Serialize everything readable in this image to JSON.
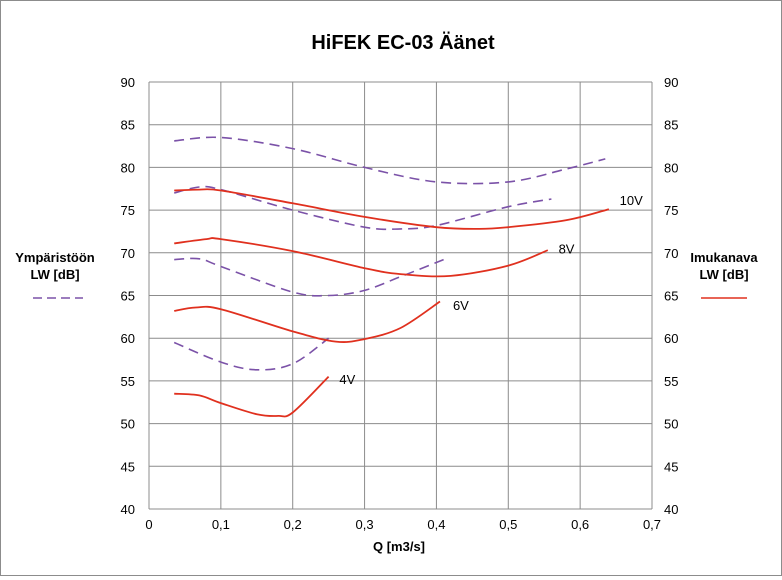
{
  "chart_data": {
    "type": "line",
    "title": "HiFEK EC-03 Äänet",
    "xlabel": "Q [m3/s]",
    "ylabel_left": "Ympäristöön LW [dB]",
    "ylabel_right": "Imukanava LW [dB]",
    "xlim": [
      0,
      0.7
    ],
    "ylim": [
      40,
      90
    ],
    "x_ticks": [
      "0",
      "0,1",
      "0,2",
      "0,3",
      "0,4",
      "0,5",
      "0,6",
      "0,7"
    ],
    "y_ticks_left": [
      "40",
      "45",
      "50",
      "55",
      "60",
      "65",
      "70",
      "75",
      "80",
      "85",
      "90"
    ],
    "y_ticks_right": [
      "40",
      "45",
      "50",
      "55",
      "60",
      "65",
      "70",
      "75",
      "80",
      "85",
      "90"
    ],
    "grid": true,
    "colors": {
      "ymparisto": "#7b52a8",
      "imukanava": "#e0301e",
      "grid": "#8c8c8c"
    },
    "legend": {
      "left": {
        "line1": "Ympäristöön",
        "line2": "LW [dB]",
        "style": "dashed"
      },
      "right": {
        "line1": "Imukanava",
        "line2": "LW [dB]",
        "style": "solid"
      }
    },
    "series": [
      {
        "group": "ymparisto",
        "label": "10V",
        "x": [
          0.035,
          0.1,
          0.2,
          0.3,
          0.4,
          0.5,
          0.58,
          0.635
        ],
        "y": [
          83.1,
          83.5,
          82.2,
          80.0,
          78.3,
          78.3,
          79.8,
          81.0
        ]
      },
      {
        "group": "ymparisto",
        "label": "8V",
        "x": [
          0.035,
          0.07,
          0.1,
          0.2,
          0.3,
          0.35,
          0.4,
          0.5,
          0.56
        ],
        "y": [
          77.0,
          77.7,
          77.4,
          75.0,
          73.0,
          72.8,
          73.2,
          75.4,
          76.3
        ]
      },
      {
        "group": "ymparisto",
        "label": "6V",
        "x": [
          0.035,
          0.07,
          0.1,
          0.2,
          0.25,
          0.3,
          0.35,
          0.41
        ],
        "y": [
          69.2,
          69.3,
          68.4,
          65.4,
          65.0,
          65.6,
          67.2,
          69.2
        ]
      },
      {
        "group": "ymparisto",
        "label": "4V",
        "x": [
          0.035,
          0.1,
          0.15,
          0.2,
          0.25
        ],
        "y": [
          59.5,
          57.2,
          56.3,
          57.0,
          60.0
        ]
      },
      {
        "group": "imukanava",
        "label": "10V",
        "x": [
          0.035,
          0.07,
          0.1,
          0.2,
          0.3,
          0.4,
          0.46,
          0.5,
          0.58,
          0.64
        ],
        "y": [
          77.3,
          77.4,
          77.3,
          75.8,
          74.2,
          73.0,
          72.8,
          73.0,
          73.8,
          75.1
        ]
      },
      {
        "group": "imukanava",
        "label": "8V",
        "x": [
          0.035,
          0.08,
          0.1,
          0.2,
          0.3,
          0.35,
          0.42,
          0.5,
          0.555
        ],
        "y": [
          71.1,
          71.6,
          71.6,
          70.2,
          68.2,
          67.5,
          67.3,
          68.5,
          70.3
        ]
      },
      {
        "group": "imukanava",
        "label": "6V",
        "x": [
          0.035,
          0.065,
          0.1,
          0.2,
          0.26,
          0.3,
          0.35,
          0.405
        ],
        "y": [
          63.2,
          63.6,
          63.4,
          60.8,
          59.6,
          59.9,
          61.2,
          64.3
        ]
      },
      {
        "group": "imukanava",
        "label": "4V",
        "x": [
          0.035,
          0.07,
          0.1,
          0.15,
          0.18,
          0.2,
          0.25
        ],
        "y": [
          53.5,
          53.3,
          52.4,
          51.1,
          50.9,
          51.3,
          55.5
        ]
      }
    ],
    "series_labels": [
      {
        "text": "10V",
        "x": 0.655,
        "y": 76.2
      },
      {
        "text": "8V",
        "x": 0.57,
        "y": 70.5
      },
      {
        "text": "6V",
        "x": 0.423,
        "y": 63.9
      },
      {
        "text": "4V",
        "x": 0.265,
        "y": 55.2
      }
    ]
  }
}
